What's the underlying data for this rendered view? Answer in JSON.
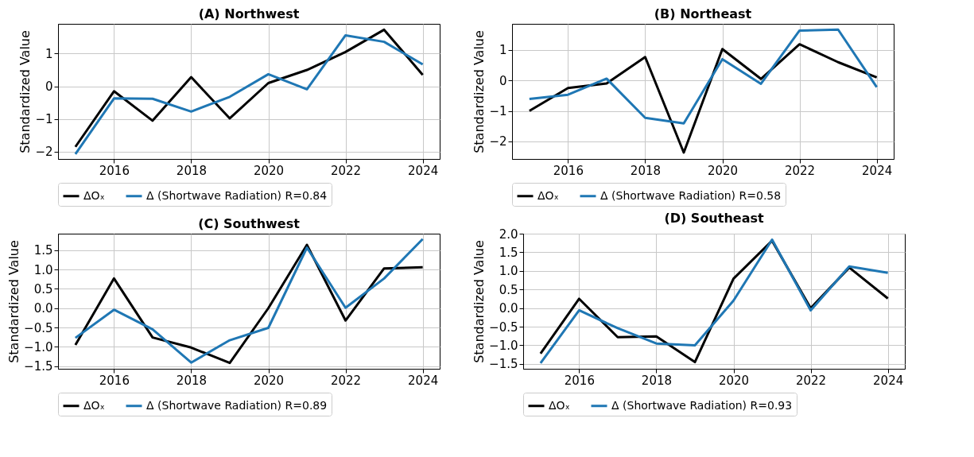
{
  "chart_data": [
    {
      "type": "line",
      "title": "(A) Northwest",
      "ylabel": "Standardized Value",
      "x": [
        2015,
        2016,
        2017,
        2018,
        2019,
        2020,
        2021,
        2022,
        2023,
        2024
      ],
      "xlim": [
        2014.55,
        2024.44
      ],
      "xticks": [
        2016,
        2018,
        2020,
        2022,
        2024
      ],
      "ylim": [
        -2.22,
        1.91
      ],
      "yticks": [
        -2,
        -1,
        0,
        1
      ],
      "grid": true,
      "legend": "bottom",
      "series": [
        {
          "name": "ΔOₓ",
          "color": "#000000",
          "values": [
            -1.85,
            -0.15,
            -1.05,
            0.28,
            -0.98,
            0.1,
            0.5,
            1.05,
            1.73,
            0.35
          ]
        },
        {
          "name": "Δ (Shortwave Radiation) R=0.84",
          "color": "#1f77b4",
          "values": [
            -2.07,
            -0.37,
            -0.38,
            -0.77,
            -0.32,
            0.37,
            -0.09,
            1.56,
            1.36,
            0.67
          ]
        }
      ]
    },
    {
      "type": "line",
      "title": "(B) Northeast",
      "ylabel": "Standardized Value",
      "x": [
        2015,
        2016,
        2017,
        2018,
        2019,
        2020,
        2021,
        2022,
        2023,
        2024
      ],
      "xlim": [
        2014.55,
        2024.44
      ],
      "xticks": [
        2016,
        2018,
        2020,
        2022,
        2024
      ],
      "ylim": [
        -2.58,
        1.86
      ],
      "yticks": [
        -2,
        -1,
        0,
        1
      ],
      "grid": true,
      "legend": "bottom",
      "series": [
        {
          "name": "ΔOₓ",
          "color": "#000000",
          "values": [
            -1.0,
            -0.25,
            -0.1,
            0.77,
            -2.37,
            1.03,
            0.05,
            1.19,
            0.6,
            0.1
          ]
        },
        {
          "name": "Δ (Shortwave Radiation) R=0.58",
          "color": "#1f77b4",
          "values": [
            -0.61,
            -0.47,
            0.06,
            -1.23,
            -1.41,
            0.7,
            -0.11,
            1.64,
            1.67,
            -0.22
          ]
        }
      ]
    },
    {
      "type": "line",
      "title": "(C) Southwest",
      "ylabel": "Standardized Value",
      "x": [
        2015,
        2016,
        2017,
        2018,
        2019,
        2020,
        2021,
        2022,
        2023,
        2024
      ],
      "xlim": [
        2014.55,
        2024.44
      ],
      "xticks": [
        2016,
        2018,
        2020,
        2022,
        2024
      ],
      "ylim": [
        -1.57,
        1.93
      ],
      "yticks": [
        {
          "value": -1.5,
          "label": "−1.5"
        },
        {
          "value": -1,
          "label": "−1.0"
        },
        {
          "value": -0.5,
          "label": "−0.5"
        },
        {
          "value": 0,
          "label": "0.0"
        },
        0.5,
        {
          "value": 1,
          "label": "1.0"
        },
        1.5
      ],
      "grid": true,
      "legend": "bottom",
      "series": [
        {
          "name": "ΔOₓ",
          "color": "#000000",
          "values": [
            -0.95,
            0.77,
            -0.76,
            -1.02,
            -1.42,
            0.0,
            1.64,
            -0.32,
            1.03,
            1.06
          ]
        },
        {
          "name": "Δ (Shortwave Radiation) R=0.89",
          "color": "#1f77b4",
          "values": [
            -0.77,
            -0.04,
            -0.55,
            -1.41,
            -0.83,
            -0.51,
            1.57,
            0.01,
            0.77,
            1.79
          ]
        }
      ]
    },
    {
      "type": "line",
      "title": "(D) Southeast",
      "ylabel": "Standardized Value",
      "x": [
        2015,
        2016,
        2017,
        2018,
        2019,
        2020,
        2021,
        2022,
        2023,
        2024
      ],
      "xlim": [
        2014.55,
        2024.44
      ],
      "xticks": [
        2016,
        2018,
        2020,
        2022,
        2024
      ],
      "ylim": [
        -1.63,
        2.0
      ],
      "yticks": [
        {
          "value": -1.5,
          "label": "−1.5"
        },
        {
          "value": -1,
          "label": "−1.0"
        },
        {
          "value": -0.5,
          "label": "−0.5"
        },
        {
          "value": 0,
          "label": "0.0"
        },
        0.5,
        {
          "value": 1,
          "label": "1.0"
        },
        1.5,
        {
          "value": 2,
          "label": "2.0"
        }
      ],
      "grid": true,
      "legend": "bottom",
      "series": [
        {
          "name": "ΔOₓ",
          "color": "#000000",
          "values": [
            -1.22,
            0.25,
            -0.78,
            -0.76,
            -1.45,
            0.79,
            1.81,
            0.0,
            1.09,
            0.26
          ]
        },
        {
          "name": "Δ (Shortwave Radiation) R=0.93",
          "color": "#1f77b4",
          "values": [
            -1.48,
            -0.06,
            -0.54,
            -0.95,
            -1.0,
            0.2,
            1.84,
            -0.06,
            1.12,
            0.95
          ]
        }
      ]
    }
  ]
}
